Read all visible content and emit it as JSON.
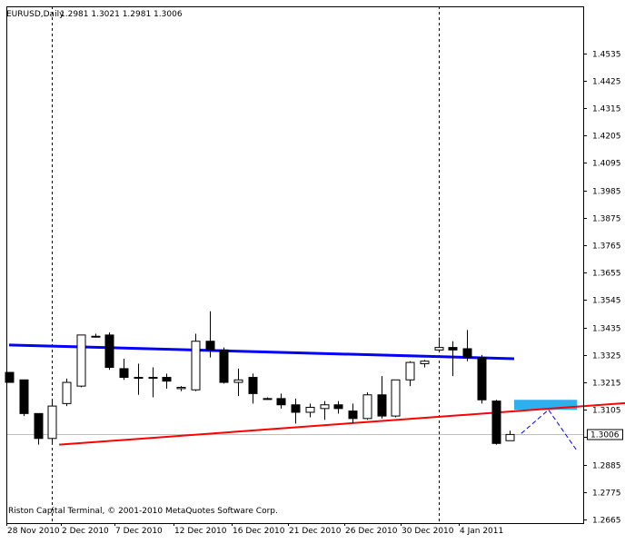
{
  "header": {
    "symbol_label": "EURUSD,Daily",
    "ohlc_text": "1.2981 1.3021 1.2981 1.3006"
  },
  "footer": {
    "copyright": "Riston Capital Terminal, © 2001-2010 MetaQuotes Software Corp."
  },
  "colors": {
    "background": "#ffffff",
    "candle_outline": "#000000",
    "bull_body": "#ffffff",
    "bear_body": "#000000",
    "resistance_line": "#0000ff",
    "support_line": "#ff0000",
    "highlight_zone": "#2fb0ee",
    "projection_line": "#0000ff",
    "current_price_line": "#c0c0c0"
  },
  "chart_data": {
    "type": "candlestick",
    "symbol": "EURUSD",
    "timeframe": "Daily",
    "ylim": [
      1.2665,
      1.4625
    ],
    "y_ticks": [
      "1.4535",
      "1.4425",
      "1.4315",
      "1.4205",
      "1.4095",
      "1.3985",
      "1.3875",
      "1.3765",
      "1.3655",
      "1.3545",
      "1.3435",
      "1.3325",
      "1.3215",
      "1.3105",
      "1.2995",
      "1.2885",
      "1.2775",
      "1.2665"
    ],
    "current_price": "1.3006",
    "x_tick_labels": [
      "28 Nov 2010",
      "2 Dec 2010",
      "7 Dec 2010",
      "12 Dec 2010",
      "16 Dec 2010",
      "21 Dec 2010",
      "26 Dec 2010",
      "30 Dec 2010",
      "4 Jan 2011"
    ],
    "separator_labels": [
      "28 Nov 2010",
      "30 Dec 2010"
    ],
    "candles": [
      {
        "o": 1.3255,
        "h": 1.3255,
        "l": 1.3215,
        "c": 1.3215
      },
      {
        "o": 1.3225,
        "h": 1.3225,
        "l": 1.308,
        "c": 1.309
      },
      {
        "o": 1.309,
        "h": 1.309,
        "l": 1.2965,
        "c": 1.299
      },
      {
        "o": 1.299,
        "h": 1.315,
        "l": 1.297,
        "c": 1.312
      },
      {
        "o": 1.313,
        "h": 1.323,
        "l": 1.312,
        "c": 1.3215
      },
      {
        "o": 1.32,
        "h": 1.3405,
        "l": 1.3195,
        "c": 1.3405
      },
      {
        "o": 1.34,
        "h": 1.341,
        "l": 1.3395,
        "c": 1.34
      },
      {
        "o": 1.3405,
        "h": 1.3415,
        "l": 1.3265,
        "c": 1.3275
      },
      {
        "o": 1.327,
        "h": 1.331,
        "l": 1.3225,
        "c": 1.3235
      },
      {
        "o": 1.3235,
        "h": 1.329,
        "l": 1.3165,
        "c": 1.3235
      },
      {
        "o": 1.3235,
        "h": 1.3275,
        "l": 1.3155,
        "c": 1.3235
      },
      {
        "o": 1.3235,
        "h": 1.325,
        "l": 1.319,
        "c": 1.322
      },
      {
        "o": 1.319,
        "h": 1.32,
        "l": 1.318,
        "c": 1.3195
      },
      {
        "o": 1.3185,
        "h": 1.341,
        "l": 1.318,
        "c": 1.338
      },
      {
        "o": 1.338,
        "h": 1.35,
        "l": 1.3315,
        "c": 1.3345
      },
      {
        "o": 1.3345,
        "h": 1.3355,
        "l": 1.321,
        "c": 1.3215
      },
      {
        "o": 1.3215,
        "h": 1.327,
        "l": 1.316,
        "c": 1.3225
      },
      {
        "o": 1.3235,
        "h": 1.325,
        "l": 1.313,
        "c": 1.317
      },
      {
        "o": 1.315,
        "h": 1.3155,
        "l": 1.3145,
        "c": 1.315
      },
      {
        "o": 1.315,
        "h": 1.317,
        "l": 1.311,
        "c": 1.3125
      },
      {
        "o": 1.3125,
        "h": 1.315,
        "l": 1.305,
        "c": 1.3095
      },
      {
        "o": 1.3095,
        "h": 1.313,
        "l": 1.3075,
        "c": 1.3115
      },
      {
        "o": 1.311,
        "h": 1.314,
        "l": 1.3065,
        "c": 1.3125
      },
      {
        "o": 1.3125,
        "h": 1.314,
        "l": 1.309,
        "c": 1.311
      },
      {
        "o": 1.31,
        "h": 1.313,
        "l": 1.305,
        "c": 1.307
      },
      {
        "o": 1.307,
        "h": 1.3175,
        "l": 1.3065,
        "c": 1.3165
      },
      {
        "o": 1.3165,
        "h": 1.324,
        "l": 1.307,
        "c": 1.308
      },
      {
        "o": 1.308,
        "h": 1.3225,
        "l": 1.3075,
        "c": 1.3225
      },
      {
        "o": 1.3225,
        "h": 1.33,
        "l": 1.32,
        "c": 1.3295
      },
      {
        "o": 1.329,
        "h": 1.3305,
        "l": 1.3275,
        "c": 1.33
      },
      {
        "o": 1.3345,
        "h": 1.3395,
        "l": 1.3335,
        "c": 1.3355
      },
      {
        "o": 1.3355,
        "h": 1.338,
        "l": 1.324,
        "c": 1.3345
      },
      {
        "o": 1.335,
        "h": 1.3425,
        "l": 1.33,
        "c": 1.3315
      },
      {
        "o": 1.3315,
        "h": 1.3325,
        "l": 1.313,
        "c": 1.3145
      },
      {
        "o": 1.314,
        "h": 1.3145,
        "l": 1.2965,
        "c": 1.297
      },
      {
        "o": 1.2981,
        "h": 1.3021,
        "l": 1.2981,
        "c": 1.3006
      }
    ],
    "resistance_line": {
      "from": {
        "candle": 0,
        "price": 1.3365
      },
      "to": {
        "candle": 35.3,
        "price": 1.331
      }
    },
    "support_line": {
      "from": {
        "candle": 3.5,
        "price": 1.2965
      },
      "to": {
        "candle": 43.8,
        "price": 1.3135
      }
    },
    "target_zone": {
      "from_candle": 35.3,
      "to_candle": 39.7,
      "price_top": 1.3145,
      "price_bottom": 1.3105
    },
    "projection": [
      {
        "candle": 35.8,
        "price": 1.301
      },
      {
        "candle": 37.7,
        "price": 1.3105
      },
      {
        "candle": 39.7,
        "price": 1.294
      }
    ]
  }
}
